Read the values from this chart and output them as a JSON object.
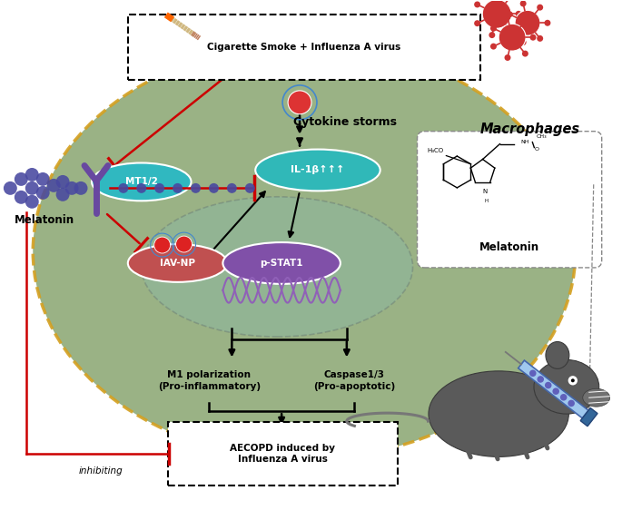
{
  "fig_width": 6.85,
  "fig_height": 5.62,
  "dpi": 100,
  "bg_color": "#ffffff",
  "cell_color": "#8faa78",
  "cell_border_color": "#d4a020",
  "nucleus_color": "#88b8aa",
  "nucleus_border_color": "#607070",
  "mt12_color": "#30b8c0",
  "mt12_text": "MT1/2",
  "il1b_color": "#30b8b8",
  "il1b_text": "IL-1β↑↑↑",
  "iavnp_color": "#c05050",
  "iavnp_text": "IAV-NP",
  "pstat1_color": "#8050a8",
  "pstat1_text": "p-STAT1",
  "receptor_color": "#6850a0",
  "melatonin_label": "Melatonin",
  "macrophages_label": "Macrophages",
  "cytokine_text": "Cytokine storms",
  "m1_text": "M1 polarization\n(Pro-inflammatory)",
  "caspase_text": "Caspase1/3\n(Pro-apoptotic)",
  "aecopd_text": "AECOPD induced by\nInfluenza A virus",
  "cig_text": "Cigarette Smoke + Influenza A virus",
  "inhibiting_text": "inhibiting",
  "melatonin_mol_text": "Melatonin",
  "arrow_color": "#000000",
  "red_color": "#cc0000",
  "dot_color": "#4848a0",
  "virus_color": "#cc2020",
  "syringe_blue": "#80aadd",
  "mouse_color": "#606060"
}
